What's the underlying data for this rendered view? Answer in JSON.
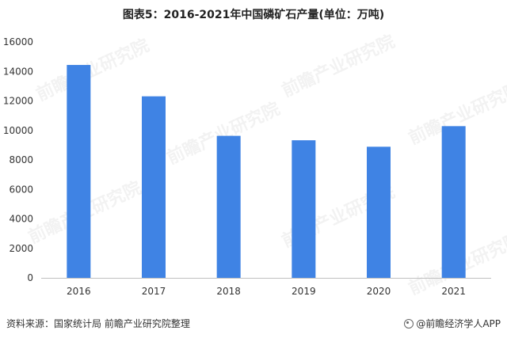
{
  "header": {
    "title": "图表5：2016-2021年中国磷矿石产量(单位：万吨)"
  },
  "footer": {
    "source": "资料来源：国家统计局 前瞻产业研究院整理",
    "credit": "@前瞻经济学人APP"
  },
  "watermark": {
    "text": "前瞻产业研究院"
  },
  "colors": {
    "bar": "#3f83e4",
    "axis": "#bfbfbf",
    "text": "#333333"
  },
  "chart_data": {
    "type": "bar",
    "title": "图表5：2016-2021年中国磷矿石产量(单位：万吨)",
    "categories": [
      "2016",
      "2017",
      "2018",
      "2019",
      "2020",
      "2021"
    ],
    "values": [
      14440,
      12313,
      9632,
      9332,
      8893,
      10290
    ],
    "xlabel": "",
    "ylabel": "",
    "ylim": [
      0,
      16000
    ],
    "yticks": [
      0,
      2000,
      4000,
      6000,
      8000,
      10000,
      12000,
      14000,
      16000
    ],
    "grid": false,
    "legend": "none"
  }
}
